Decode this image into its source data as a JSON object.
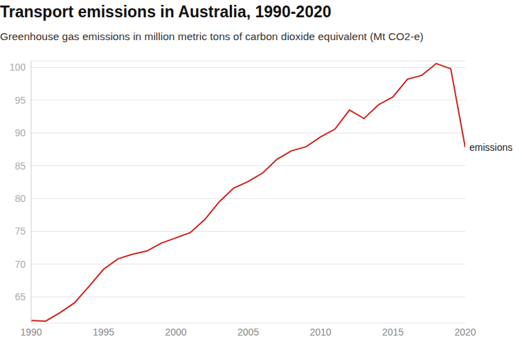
{
  "chart_data": {
    "type": "line",
    "title": "Transport emissions in Australia, 1990-2020",
    "subtitle": "Greenhouse gas emissions in million metric tons of carbon dioxide equivalent (Mt CO2-e)",
    "x": [
      1990,
      1991,
      1992,
      1993,
      1994,
      1995,
      1996,
      1997,
      1998,
      1999,
      2000,
      2001,
      2002,
      2003,
      2004,
      2005,
      2006,
      2007,
      2008,
      2009,
      2010,
      2011,
      2012,
      2013,
      2014,
      2015,
      2016,
      2017,
      2018,
      2019,
      2020
    ],
    "series": [
      {
        "name": "emissions",
        "color": "#d0211c",
        "values": [
          61.4,
          61.3,
          62.6,
          64.1,
          66.6,
          69.2,
          70.8,
          71.5,
          72.0,
          73.2,
          74.0,
          74.8,
          76.8,
          79.5,
          81.6,
          82.6,
          83.9,
          86.0,
          87.3,
          87.9,
          89.4,
          90.6,
          93.5,
          92.2,
          94.3,
          95.5,
          98.2,
          98.8,
          100.6,
          99.8,
          87.8
        ]
      }
    ],
    "xlim": [
      1990,
      2020
    ],
    "xticks": [
      1990,
      1995,
      2000,
      2005,
      2010,
      2015,
      2020
    ],
    "ylim": [
      61,
      101
    ],
    "yticks": [
      65,
      70,
      75,
      80,
      85,
      90,
      95,
      100
    ],
    "grid": true
  }
}
